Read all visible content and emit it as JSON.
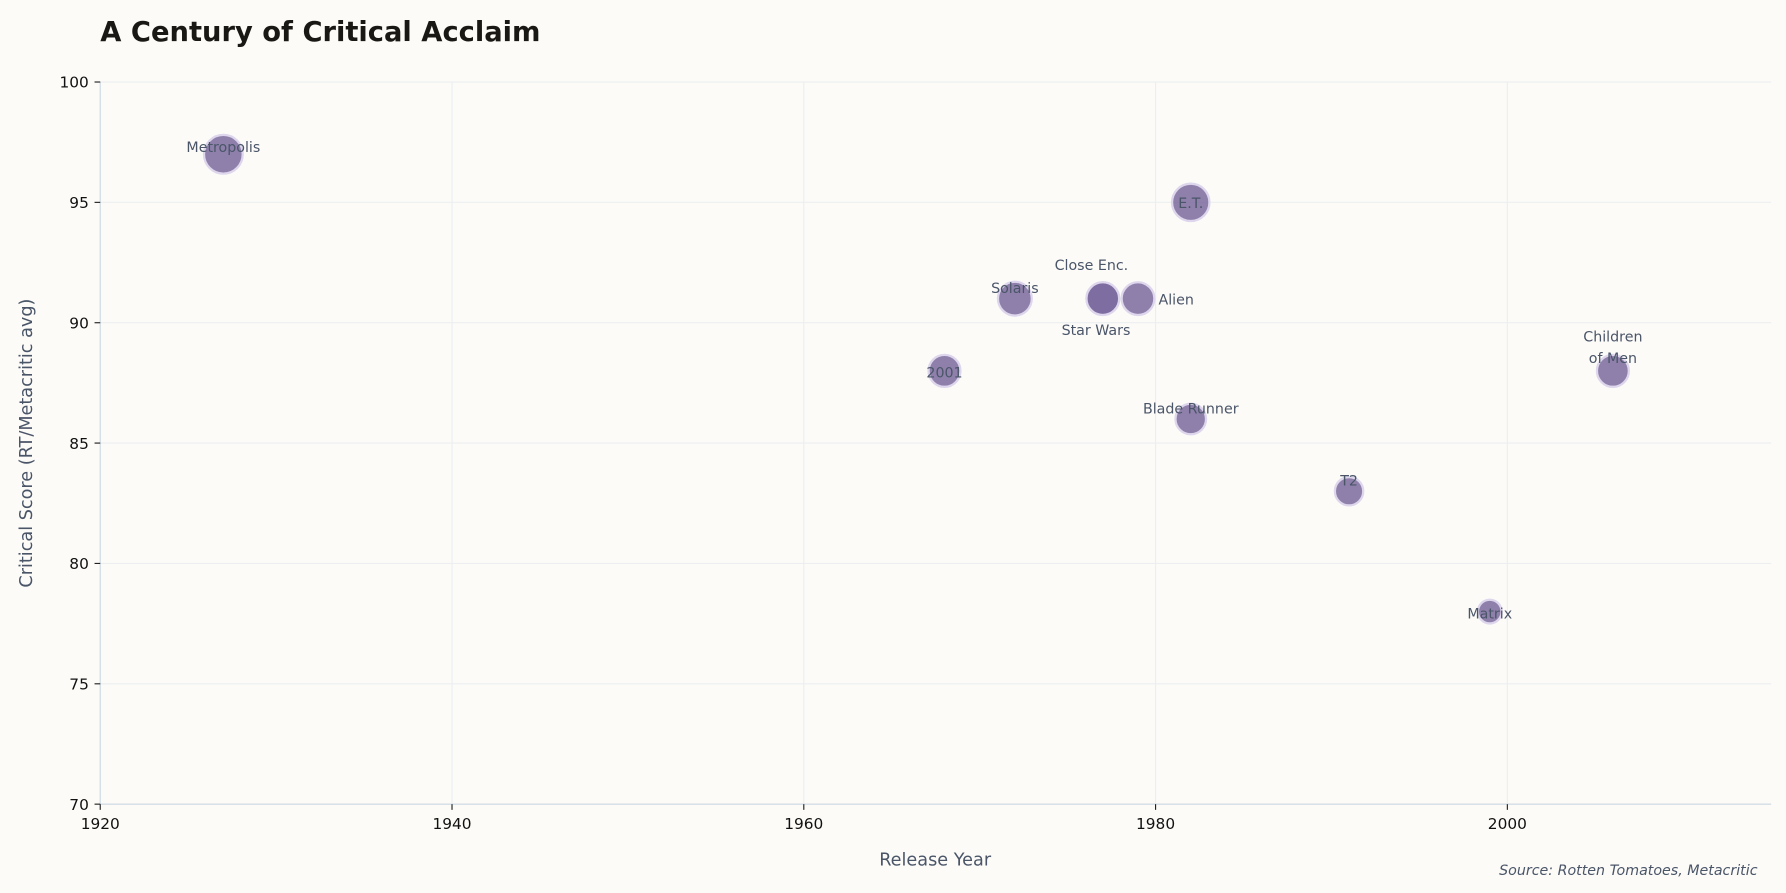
{
  "chart_data": {
    "type": "scatter",
    "title": "A Century of Critical Acclaim",
    "xlabel": "Release Year",
    "ylabel": "Critical Score (RT/Metacritic avg)",
    "xlim": [
      1920,
      2015
    ],
    "ylim": [
      70,
      100
    ],
    "xticks": [
      "1920",
      "1940",
      "1960",
      "1980",
      "2000"
    ],
    "yticks": [
      "70",
      "75",
      "80",
      "85",
      "90",
      "95",
      "100"
    ],
    "grid": true,
    "point_color": "#7b6a9e",
    "point_edge_color": "#ddd6ec",
    "source": "Source: Rotten Tomatoes, Metacritic",
    "points": [
      {
        "label": "Metropolis",
        "x": 1927,
        "y": 97,
        "size": 1.0
      },
      {
        "label": "2001",
        "x": 1968,
        "y": 88,
        "size": 0.75
      },
      {
        "label": "Solaris",
        "x": 1972,
        "y": 91,
        "size": 0.82
      },
      {
        "label": "Close Enc.",
        "x": 1977,
        "y": 91,
        "size": 0.78
      },
      {
        "label": "Star Wars",
        "x": 1977,
        "y": 91,
        "size": 0.78
      },
      {
        "label": "Alien",
        "x": 1979,
        "y": 91,
        "size": 0.78
      },
      {
        "label": "E.T.",
        "x": 1982,
        "y": 95,
        "size": 0.95
      },
      {
        "label": "Blade Runner",
        "x": 1982,
        "y": 86,
        "size": 0.7
      },
      {
        "label": "T2",
        "x": 1991,
        "y": 83,
        "size": 0.62
      },
      {
        "label": "Matrix",
        "x": 1999,
        "y": 78,
        "size": 0.45
      },
      {
        "label": "Children\nof Men",
        "x": 2006,
        "y": 88,
        "size": 0.75
      }
    ]
  }
}
